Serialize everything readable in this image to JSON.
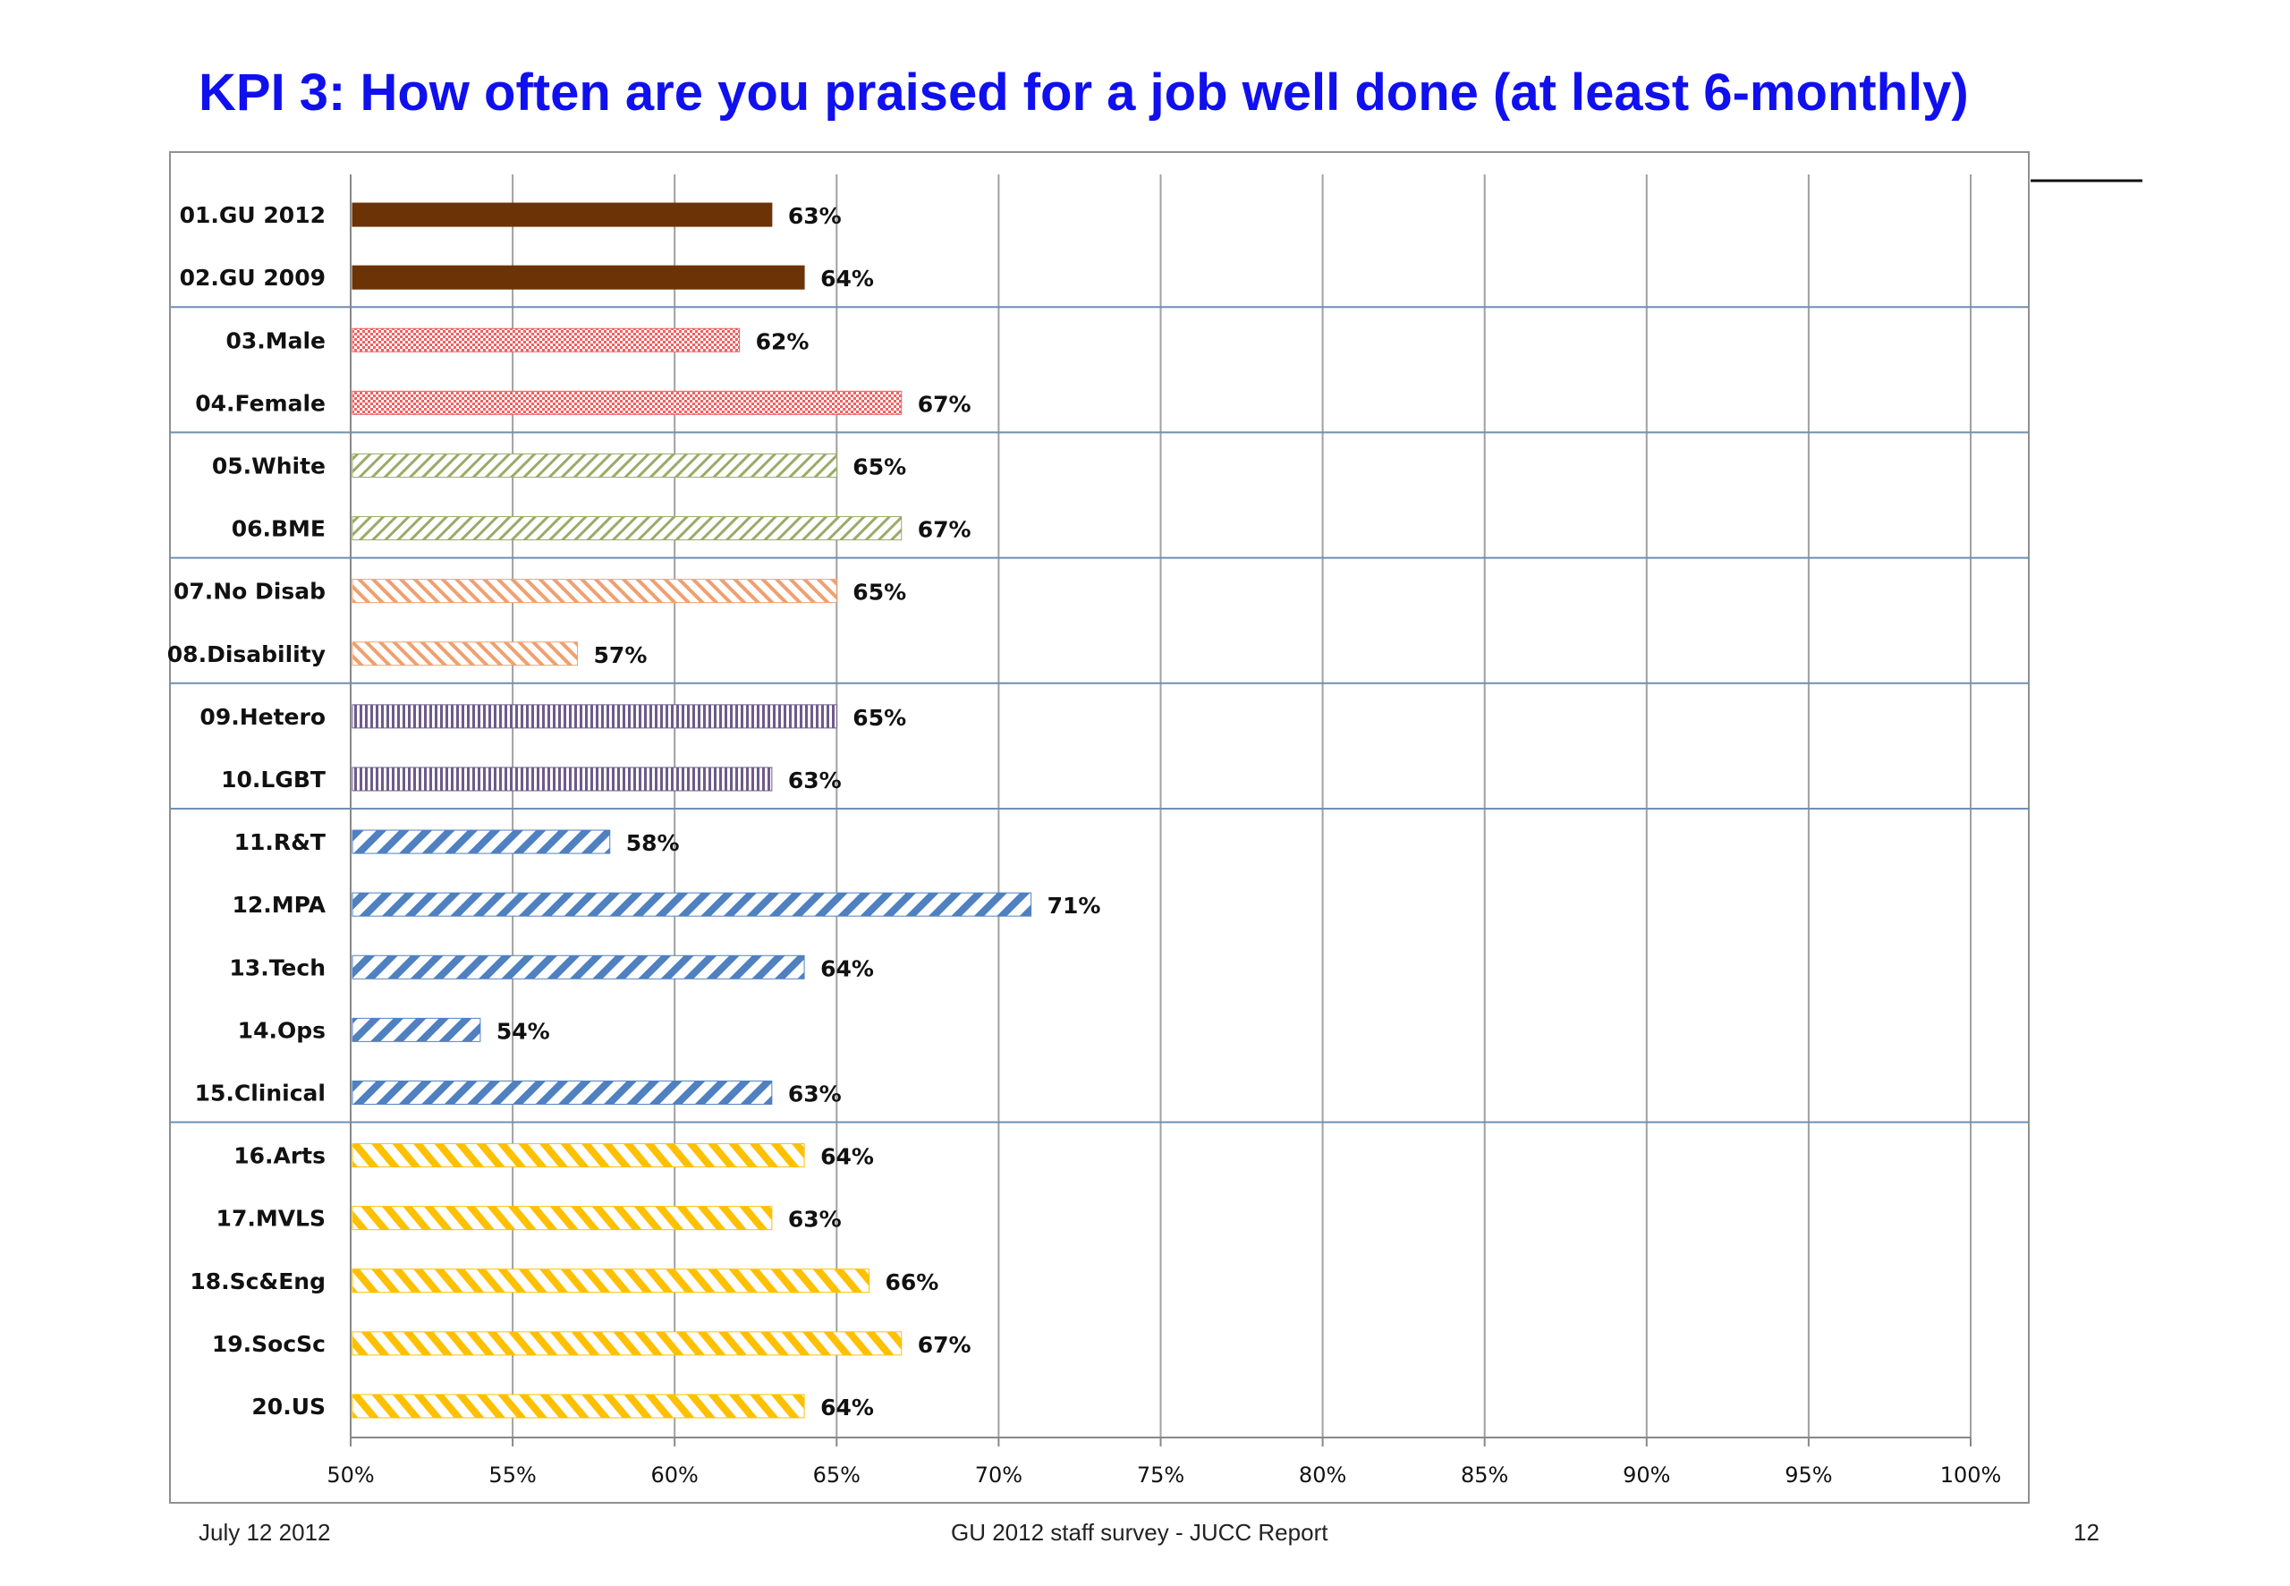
{
  "title": "KPI 3: How often are you praised for a job well done (at least 6-monthly)",
  "footer": {
    "date": "July 12 2012",
    "center": "GU 2012 staff survey -  JUCC Report",
    "page": "12"
  },
  "chart_data": {
    "type": "bar",
    "orientation": "horizontal",
    "title": "",
    "xlabel": "",
    "ylabel": "",
    "xlim": [
      50,
      100
    ],
    "x_ticks": [
      "50%",
      "55%",
      "60%",
      "65%",
      "70%",
      "75%",
      "80%",
      "85%",
      "90%",
      "95%",
      "100%"
    ],
    "grid": true,
    "categories": [
      "01.GU 2012",
      "02.GU 2009",
      "03.Male",
      "04.Female",
      "05.White",
      "06.BME",
      "07.No Disab",
      "08.Disability",
      "09.Hetero",
      "10.LGBT",
      "11.R&T",
      "12.MPA",
      "13.Tech",
      "14.Ops",
      "15.Clinical",
      "16.Arts",
      "17.MVLS",
      "18.Sc&Eng",
      "19.SocSc",
      "20.US"
    ],
    "values": [
      63,
      64,
      62,
      67,
      65,
      67,
      65,
      57,
      65,
      63,
      58,
      71,
      64,
      54,
      63,
      64,
      63,
      66,
      67,
      64
    ],
    "value_labels": [
      "63%",
      "64%",
      "62%",
      "67%",
      "65%",
      "67%",
      "65%",
      "57%",
      "65%",
      "63%",
      "58%",
      "71%",
      "64%",
      "54%",
      "63%",
      "64%",
      "63%",
      "66%",
      "67%",
      "64%"
    ],
    "groups": [
      {
        "start": 0,
        "end": 1,
        "color": "#6b3306",
        "pattern": "solid"
      },
      {
        "start": 2,
        "end": 3,
        "color": "#f06060",
        "pattern": "dots"
      },
      {
        "start": 4,
        "end": 5,
        "color": "#9aaa6a",
        "pattern": "diag-thin"
      },
      {
        "start": 6,
        "end": 7,
        "color": "#f0a070",
        "pattern": "diag-fwd"
      },
      {
        "start": 8,
        "end": 9,
        "color": "#6e5a8a",
        "pattern": "vertical"
      },
      {
        "start": 10,
        "end": 14,
        "color": "#4f80c0",
        "pattern": "diag-wide"
      },
      {
        "start": 15,
        "end": 19,
        "color": "#ffc000",
        "pattern": "diag-fwd-wide"
      }
    ]
  }
}
